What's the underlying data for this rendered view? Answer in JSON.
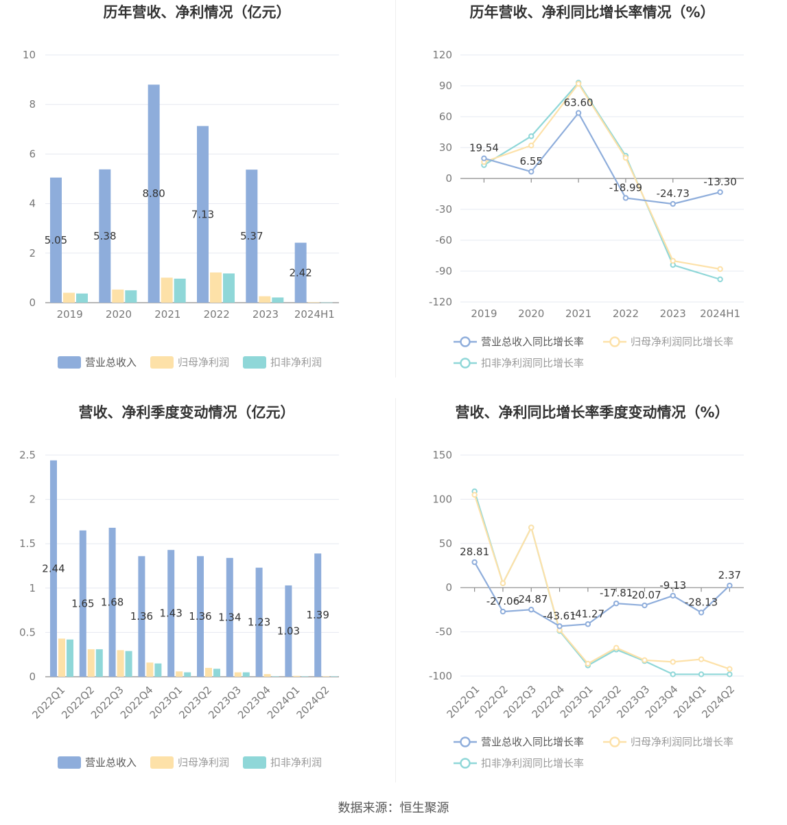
{
  "colors": {
    "revenue": "#8eaddb",
    "parent_profit": "#fde1a8",
    "deducted_profit": "#8fd7d8",
    "rev_line": "#8eaddb",
    "parent_line": "#fde1a8",
    "deducted_line": "#8fd7d8"
  },
  "legend": {
    "bars": [
      "营业总收入",
      "归母净利润",
      "扣非净利润"
    ],
    "lines": [
      "营业总收入同比增长率",
      "归母净利润同比增长率",
      "扣非净利润同比增长率"
    ]
  },
  "source_text": "数据来源：恒生聚源",
  "chart_data": [
    {
      "type": "bar",
      "title": "历年营收、净利情况（亿元）",
      "categories": [
        "2019",
        "2020",
        "2021",
        "2022",
        "2023",
        "2024H1"
      ],
      "ylim": [
        0,
        10
      ],
      "yticks": [
        0,
        2,
        4,
        6,
        8,
        10
      ],
      "series": [
        {
          "name": "营业总收入",
          "values": [
            5.05,
            5.38,
            8.8,
            7.13,
            5.37,
            2.42
          ],
          "labels": [
            "5.05",
            "5.38",
            "8.80",
            "7.13",
            "5.37",
            "2.42"
          ]
        },
        {
          "name": "归母净利润",
          "values": [
            0.4,
            0.53,
            1.01,
            1.22,
            0.26,
            0.02
          ]
        },
        {
          "name": "扣非净利润",
          "values": [
            0.37,
            0.5,
            0.97,
            1.18,
            0.21,
            0.01
          ]
        }
      ],
      "legend": "bottom",
      "grid": true
    },
    {
      "type": "line",
      "title": "历年营收、净利同比增长率情况（%）",
      "categories": [
        "2019",
        "2020",
        "2021",
        "2022",
        "2023",
        "2024H1"
      ],
      "ylim": [
        -120,
        120
      ],
      "yticks": [
        -120,
        -90,
        -60,
        -30,
        0,
        30,
        60,
        90,
        120
      ],
      "series": [
        {
          "name": "营业总收入同比增长率",
          "values": [
            19.54,
            6.55,
            63.6,
            -18.99,
            -24.73,
            -13.3
          ],
          "labels": [
            "19.54",
            "6.55",
            "63.60",
            "-18.99",
            "-24.73",
            "-13.30"
          ]
        },
        {
          "name": "归母净利润同比增长率",
          "values": [
            16,
            32,
            92,
            20,
            -80,
            -88
          ]
        },
        {
          "name": "扣非净利润同比增长率",
          "values": [
            13,
            41,
            93,
            22,
            -84,
            -98
          ]
        }
      ],
      "legend": "bottom",
      "grid": true
    },
    {
      "type": "bar",
      "title": "营收、净利季度变动情况（亿元）",
      "categories": [
        "2022Q1",
        "2022Q2",
        "2022Q3",
        "2022Q4",
        "2023Q1",
        "2023Q2",
        "2023Q3",
        "2023Q4",
        "2024Q1",
        "2024Q2"
      ],
      "ylim": [
        0,
        2.5
      ],
      "yticks": [
        0,
        0.5,
        1,
        1.5,
        2,
        2.5
      ],
      "series": [
        {
          "name": "营业总收入",
          "values": [
            2.44,
            1.65,
            1.68,
            1.36,
            1.43,
            1.36,
            1.34,
            1.23,
            1.03,
            1.39
          ],
          "labels": [
            "2.44",
            "1.65",
            "1.68",
            "1.36",
            "1.43",
            "1.36",
            "1.34",
            "1.23",
            "1.03",
            "1.39"
          ]
        },
        {
          "name": "归母净利润",
          "values": [
            0.43,
            0.31,
            0.3,
            0.16,
            0.06,
            0.1,
            0.05,
            0.03,
            0.01,
            0.005
          ]
        },
        {
          "name": "扣非净利润",
          "values": [
            0.42,
            0.31,
            0.29,
            0.15,
            0.05,
            0.09,
            0.05,
            0.005,
            0.005,
            0.005
          ]
        }
      ],
      "legend": "bottom",
      "grid": true
    },
    {
      "type": "line",
      "title": "营收、净利同比增长率季度变动情况（%）",
      "categories": [
        "2022Q1",
        "2022Q2",
        "2022Q3",
        "2022Q4",
        "2023Q1",
        "2023Q2",
        "2023Q3",
        "2023Q4",
        "2024Q1",
        "2024Q2"
      ],
      "ylim": [
        -100,
        150
      ],
      "yticks": [
        -100,
        -50,
        0,
        50,
        100,
        150
      ],
      "series": [
        {
          "name": "营业总收入同比增长率",
          "values": [
            28.81,
            -27.06,
            -24.87,
            -43.61,
            -41.27,
            -17.81,
            -20.07,
            -9.13,
            -28.13,
            2.37
          ],
          "labels": [
            "28.81",
            "-27.06",
            "-24.87",
            "-43.61",
            "-41.27",
            "-17.81",
            "-20.07",
            "-9.13",
            "-28.13",
            "2.37"
          ]
        },
        {
          "name": "归母净利润同比增长率",
          "values": [
            105,
            5,
            68,
            -48,
            -86,
            -68,
            -82,
            -84,
            -81,
            -92
          ]
        },
        {
          "name": "扣非净利润同比增长率",
          "values": [
            109,
            5,
            68,
            -49,
            -88,
            -70,
            -83,
            -98,
            -98,
            -98
          ]
        }
      ],
      "legend": "bottom",
      "grid": true
    }
  ]
}
